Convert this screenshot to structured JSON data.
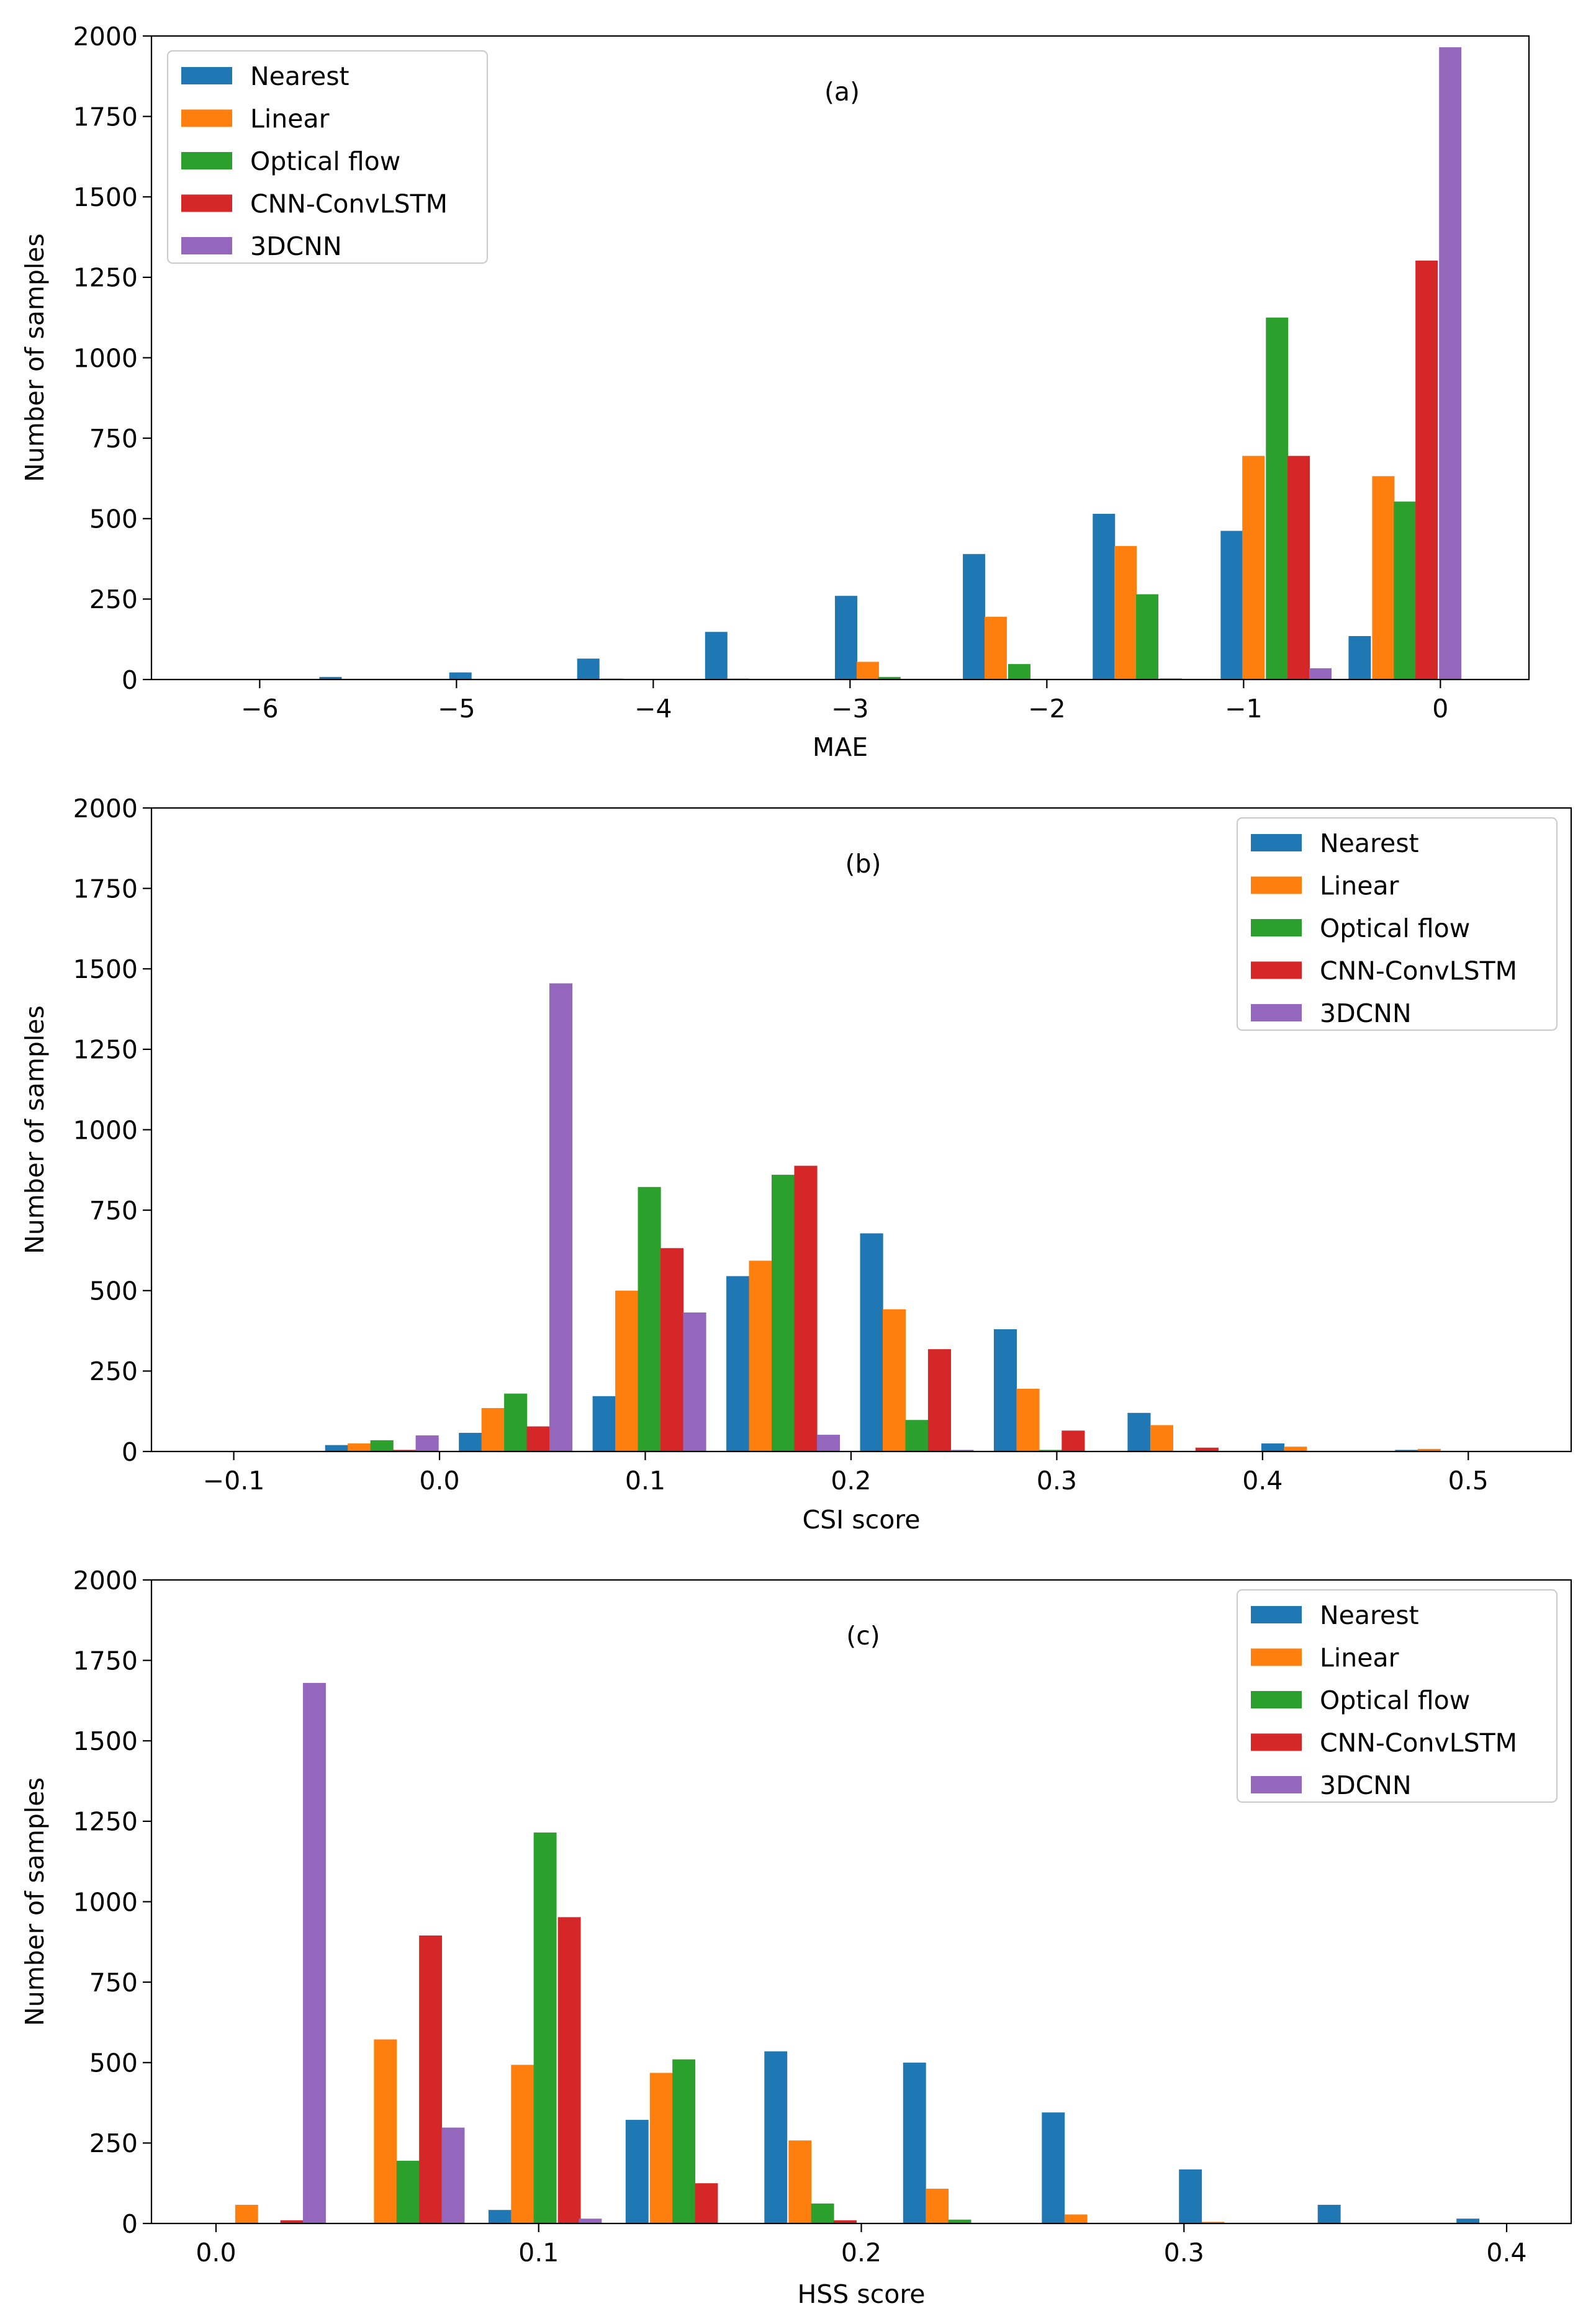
{
  "chart_data": [
    {
      "type": "bar",
      "panel_label": "(a)",
      "title": "",
      "xlabel": "MAE",
      "ylabel": "Number of samples",
      "xlim": [
        -6.55,
        0.45
      ],
      "ylim": [
        0,
        2000
      ],
      "xticks": [
        -6,
        -5,
        -4,
        -3,
        -2,
        -1,
        0
      ],
      "xtick_labels": [
        "−6",
        "−5",
        "−4",
        "−3",
        "−2",
        "−1",
        "0"
      ],
      "yticks": [
        0,
        250,
        500,
        750,
        1000,
        1250,
        1500,
        1750,
        2000
      ],
      "ytick_labels": [
        "0",
        "250",
        "500",
        "750",
        "1000",
        "1250",
        "1500",
        "1750",
        "2000"
      ],
      "bar_width": 0.1135,
      "legend_position": "upper-left",
      "grid": false,
      "series": [
        {
          "name": "Nearest",
          "color": "#1f77b4",
          "x": [
            -5.64,
            -4.98,
            -4.33,
            -3.68,
            -3.02,
            -2.37,
            -1.71,
            -1.06,
            -0.41
          ],
          "values": [
            8,
            22,
            65,
            148,
            260,
            390,
            515,
            462,
            135
          ]
        },
        {
          "name": "Linear",
          "color": "#ff7f0e",
          "x": [
            -4.21,
            -3.57,
            -2.91,
            -2.26,
            -1.6,
            -0.95,
            -0.29
          ],
          "values": [
            3,
            3,
            55,
            195,
            415,
            695,
            632
          ]
        },
        {
          "name": "Optical flow",
          "color": "#2ca02c",
          "x": [
            -2.8,
            -2.14,
            -1.49,
            -0.83,
            -0.18
          ],
          "values": [
            8,
            48,
            265,
            1125,
            553
          ]
        },
        {
          "name": "CNN-ConvLSTM",
          "color": "#d62728",
          "x": [
            -1.37,
            -0.72,
            -0.07
          ],
          "values": [
            3,
            695,
            1302
          ]
        },
        {
          "name": "3DCNN",
          "color": "#9467bd",
          "x": [
            -0.61,
            0.05
          ],
          "values": [
            35,
            1965
          ]
        }
      ]
    },
    {
      "type": "bar",
      "panel_label": "(b)",
      "title": "",
      "xlabel": "CSI score",
      "ylabel": "Number of samples",
      "xlim": [
        -0.14,
        0.55
      ],
      "ylim": [
        0,
        2000
      ],
      "xticks": [
        -0.1,
        0.0,
        0.1,
        0.2,
        0.3,
        0.4,
        0.5
      ],
      "xtick_labels": [
        "−0.1",
        "0.0",
        "0.1",
        "0.2",
        "0.3",
        "0.4",
        "0.5"
      ],
      "yticks": [
        0,
        250,
        500,
        750,
        1000,
        1250,
        1500,
        1750,
        2000
      ],
      "ytick_labels": [
        "0",
        "250",
        "500",
        "750",
        "1000",
        "1250",
        "1500",
        "1750",
        "2000"
      ],
      "bar_width": 0.0112,
      "legend_position": "upper-right",
      "grid": false,
      "series": [
        {
          "name": "Nearest",
          "color": "#1f77b4",
          "x": [
            -0.05,
            0.015,
            0.08,
            0.145,
            0.21,
            0.275,
            0.34,
            0.405,
            0.47
          ],
          "values": [
            20,
            58,
            172,
            545,
            678,
            380,
            120,
            25,
            5
          ]
        },
        {
          "name": "Linear",
          "color": "#ff7f0e",
          "x": [
            -0.039,
            0.026,
            0.091,
            0.156,
            0.221,
            0.286,
            0.351,
            0.416,
            0.481
          ],
          "values": [
            25,
            135,
            500,
            593,
            442,
            195,
            82,
            15,
            8
          ]
        },
        {
          "name": "Optical flow",
          "color": "#2ca02c",
          "x": [
            -0.028,
            0.037,
            0.102,
            0.167,
            0.232,
            0.297
          ],
          "values": [
            35,
            180,
            822,
            860,
            98,
            5
          ]
        },
        {
          "name": "CNN-ConvLSTM",
          "color": "#d62728",
          "x": [
            -0.017,
            0.048,
            0.113,
            0.178,
            0.243,
            0.308,
            0.373
          ],
          "values": [
            5,
            78,
            632,
            888,
            318,
            65,
            12
          ]
        },
        {
          "name": "3DCNN",
          "color": "#9467bd",
          "x": [
            -0.006,
            0.059,
            0.124,
            0.189,
            0.254
          ],
          "values": [
            50,
            1455,
            432,
            52,
            5
          ]
        }
      ]
    },
    {
      "type": "bar",
      "panel_label": "(c)",
      "title": "",
      "xlabel": "HSS score",
      "ylabel": "Number of samples",
      "xlim": [
        -0.02,
        0.42
      ],
      "ylim": [
        0,
        2000
      ],
      "xticks": [
        0.0,
        0.1,
        0.2,
        0.3,
        0.4
      ],
      "xtick_labels": [
        "0.0",
        "0.1",
        "0.2",
        "0.3",
        "0.4"
      ],
      "yticks": [
        0,
        250,
        500,
        750,
        1000,
        1250,
        1500,
        1750,
        2000
      ],
      "ytick_labels": [
        "0",
        "250",
        "500",
        "750",
        "1000",
        "1250",
        "1500",
        "1750",
        "2000"
      ],
      "bar_width": 0.0071,
      "legend_position": "upper-right",
      "grid": false,
      "series": [
        {
          "name": "Nearest",
          "color": "#1f77b4",
          "x": [
            0.088,
            0.1305,
            0.1735,
            0.2165,
            0.2595,
            0.302,
            0.345,
            0.388
          ],
          "values": [
            42,
            322,
            535,
            500,
            345,
            168,
            58,
            15
          ]
        },
        {
          "name": "Linear",
          "color": "#ff7f0e",
          "x": [
            0.0095,
            0.0525,
            0.095,
            0.138,
            0.181,
            0.2235,
            0.2665,
            0.309
          ],
          "values": [
            58,
            572,
            493,
            468,
            258,
            108,
            28,
            5
          ]
        },
        {
          "name": "Optical flow",
          "color": "#2ca02c",
          "x": [
            0.0595,
            0.102,
            0.145,
            0.188,
            0.2305
          ],
          "values": [
            195,
            1215,
            510,
            62,
            12
          ]
        },
        {
          "name": "CNN-ConvLSTM",
          "color": "#d62728",
          "x": [
            0.0235,
            0.0665,
            0.1095,
            0.152,
            0.195
          ],
          "values": [
            10,
            895,
            952,
            125,
            10
          ]
        },
        {
          "name": "3DCNN",
          "color": "#9467bd",
          "x": [
            0.0305,
            0.0735,
            0.116
          ],
          "values": [
            1680,
            298,
            15
          ]
        }
      ]
    }
  ]
}
